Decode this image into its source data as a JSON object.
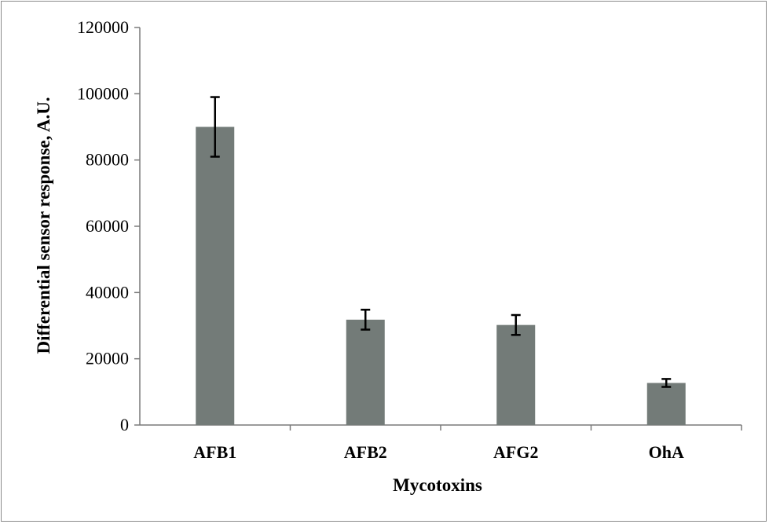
{
  "chart_data": {
    "type": "bar",
    "categories": [
      "AFB1",
      "AFB2",
      "AFG2",
      "OhA"
    ],
    "values": [
      90000,
      31800,
      30200,
      12700
    ],
    "errors": [
      9000,
      3000,
      3000,
      1200
    ],
    "xlabel": "Mycotoxins",
    "ylabel": "Differential sensor response, A.U.",
    "ylim": [
      0,
      120000
    ],
    "yticks": [
      "0",
      "20000",
      "40000",
      "60000",
      "80000",
      "100000",
      "120000"
    ],
    "grid": false,
    "bar_color": "#737b78",
    "errorbar_color": "#000000"
  }
}
